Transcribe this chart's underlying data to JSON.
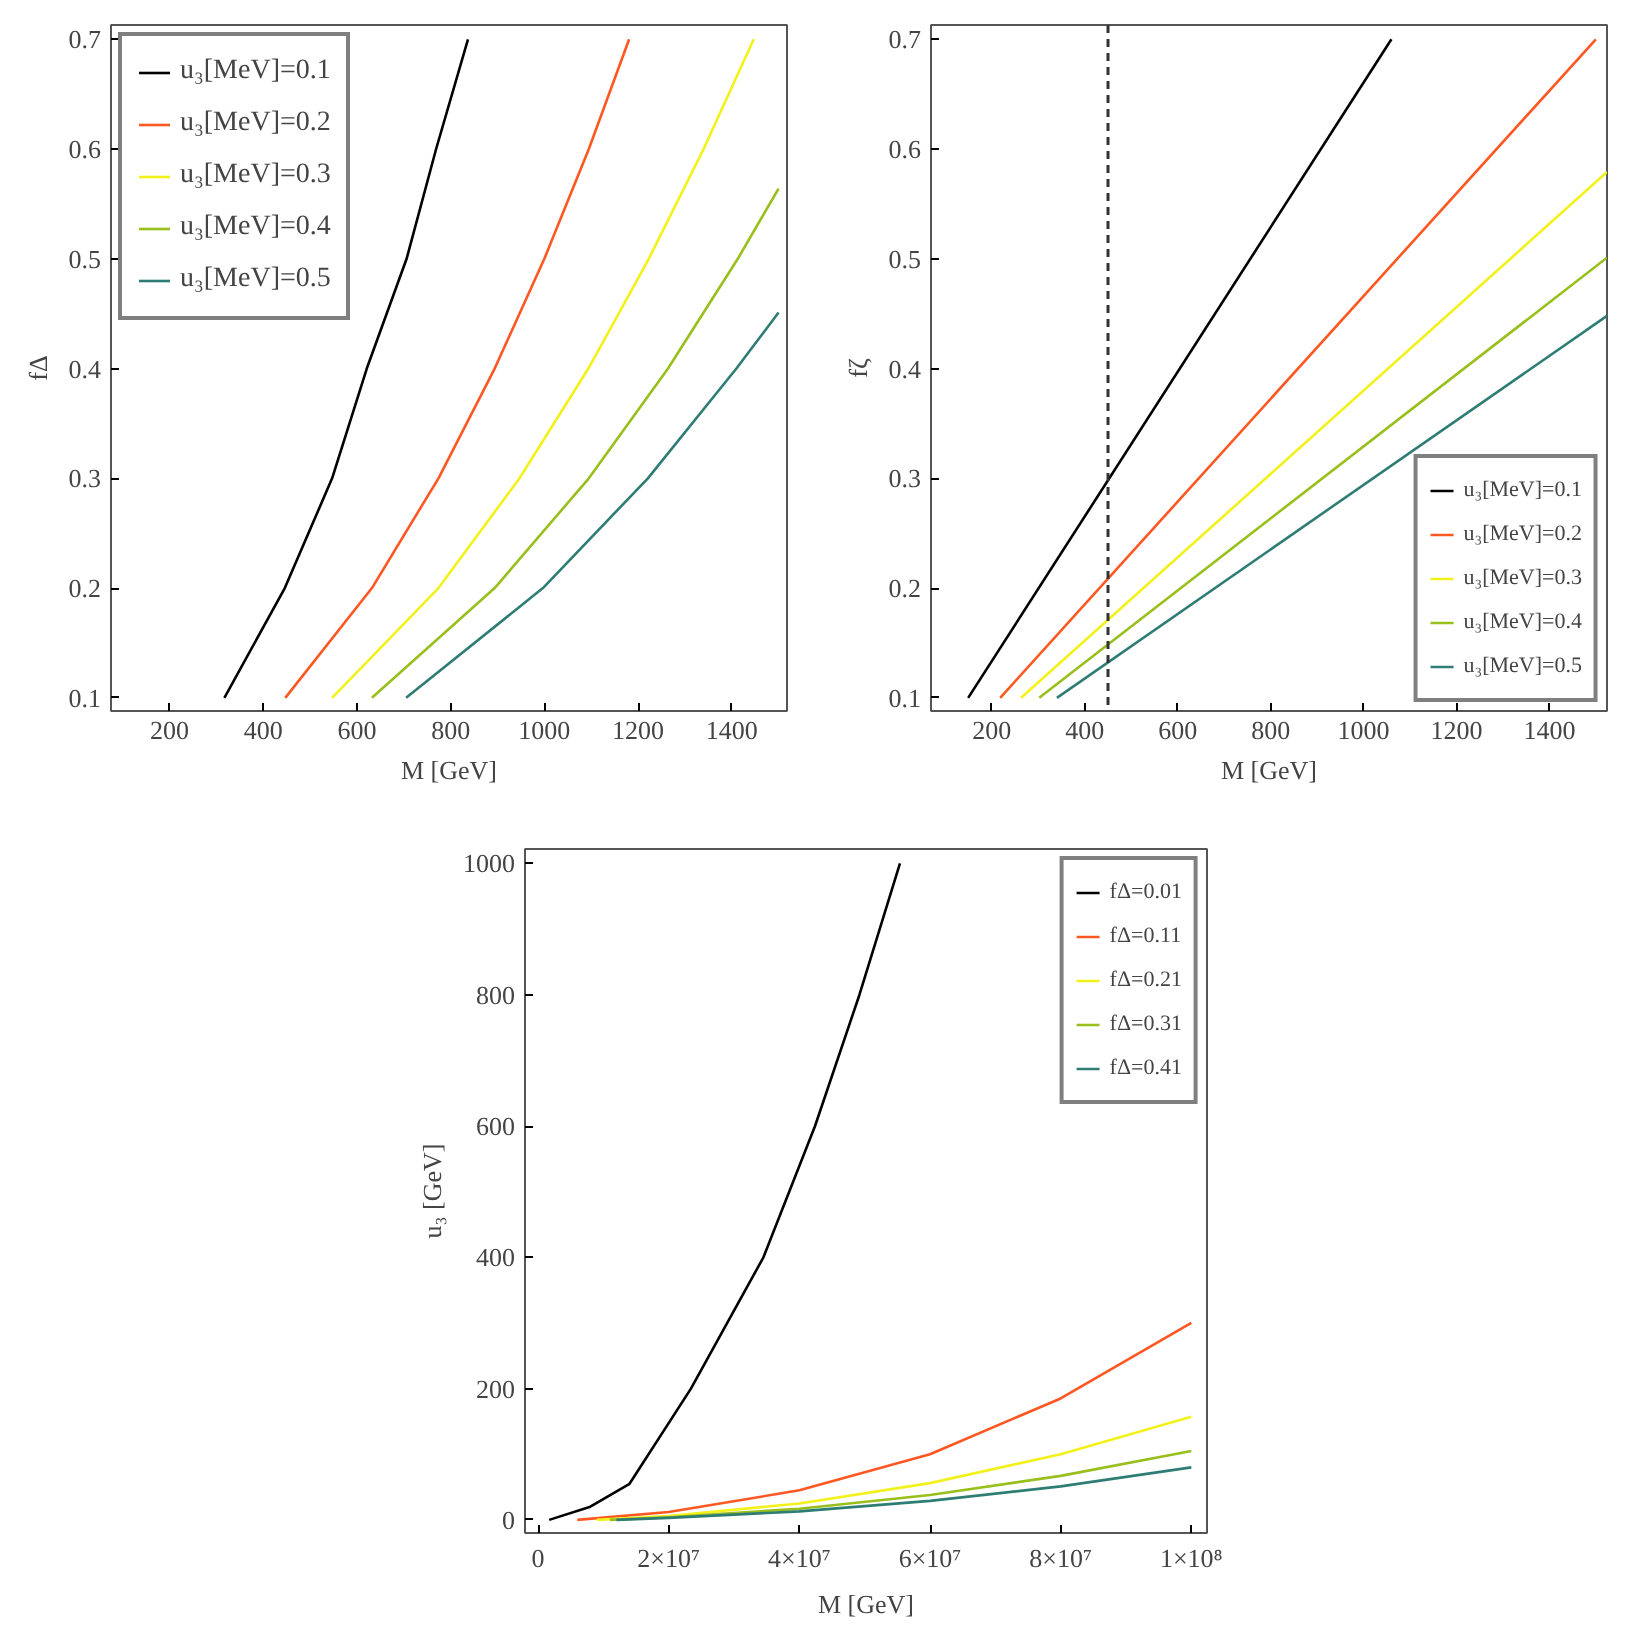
{
  "chart_data": [
    {
      "type": "line",
      "xlabel": "M [GeV]",
      "ylabel": "fΔ",
      "xlim": [
        75,
        1518
      ],
      "ylim": [
        0.088,
        0.713
      ],
      "xticks": [
        200,
        400,
        600,
        800,
        1000,
        1200,
        1400
      ],
      "yticks": [
        0.1,
        0.2,
        0.3,
        0.4,
        0.5,
        0.6,
        0.7
      ],
      "grid": false,
      "legend": "top left",
      "line_style": "solid",
      "marker": "none",
      "series": [
        {
          "name": "u₃[MeV]=0.1",
          "color": "#000000",
          "x": [
            317,
            446,
            547,
            621,
            706,
            769,
            837
          ],
          "values": [
            0.1,
            0.2,
            0.3,
            0.4,
            0.5,
            0.6,
            0.7
          ]
        },
        {
          "name": "u₃[MeV]=0.2",
          "color": "#ff5722",
          "x": [
            447,
            632,
            774,
            894,
            1000,
            1095,
            1181
          ],
          "values": [
            0.1,
            0.2,
            0.3,
            0.4,
            0.5,
            0.6,
            0.7
          ]
        },
        {
          "name": "u₃[MeV]=0.3",
          "color": "#f2f21a",
          "x": [
            547,
            774,
            947,
            1094,
            1223,
            1340,
            1447
          ],
          "values": [
            0.1,
            0.2,
            0.3,
            0.4,
            0.5,
            0.6,
            0.7
          ]
        },
        {
          "name": "u₃[MeV]=0.4",
          "color": "#99bf1c",
          "x": [
            632,
            894,
            1095,
            1264,
            1413,
            1500
          ],
          "values": [
            0.1,
            0.2,
            0.3,
            0.4,
            0.5,
            0.564
          ]
        },
        {
          "name": "u₃[MeV]=0.5",
          "color": "#2e7d74",
          "x": [
            705,
            997,
            1221,
            1410,
            1500
          ],
          "values": [
            0.1,
            0.2,
            0.3,
            0.4,
            0.451
          ]
        }
      ]
    },
    {
      "type": "line",
      "xlabel": "M [GeV]",
      "ylabel": "fζ",
      "xlim": [
        69,
        1524
      ],
      "ylim": [
        0.088,
        0.713
      ],
      "xticks": [
        200,
        400,
        600,
        800,
        1000,
        1200,
        1400
      ],
      "yticks": [
        0.1,
        0.2,
        0.3,
        0.4,
        0.5,
        0.6,
        0.7
      ],
      "grid": false,
      "legend": "bottom right",
      "line_style": "solid",
      "marker": "none",
      "ref_lines": [
        {
          "axis": "x",
          "value": 450,
          "label": null,
          "color": "#333333",
          "line_style": "dashed"
        }
      ],
      "series": [
        {
          "name": "u₃[MeV]=0.1",
          "color": "#000000",
          "x": [
            149,
            1060
          ],
          "values": [
            0.1,
            0.7
          ]
        },
        {
          "name": "u₃[MeV]=0.2",
          "color": "#ff5722",
          "x": [
            218,
            1500
          ],
          "values": [
            0.1,
            0.7
          ]
        },
        {
          "name": "u₃[MeV]=0.3",
          "color": "#f2f21a",
          "x": [
            263,
            1524
          ],
          "values": [
            0.1,
            0.579
          ]
        },
        {
          "name": "u₃[MeV]=0.4",
          "color": "#99bf1c",
          "x": [
            302,
            1524
          ],
          "values": [
            0.1,
            0.501
          ]
        },
        {
          "name": "u₃[MeV]=0.5",
          "color": "#2e7d74",
          "x": [
            340,
            1524
          ],
          "values": [
            0.1,
            0.448
          ]
        }
      ]
    },
    {
      "type": "line",
      "xlabel": "M [GeV]",
      "ylabel": "u₃ [GeV]",
      "xlim": [
        -2000000,
        102400000
      ],
      "ylim": [
        -20,
        1022
      ],
      "xticks": [
        0,
        {
          "value": 20000000,
          "label": "2×10⁷"
        },
        {
          "value": 40000000,
          "label": "4×10⁷"
        },
        {
          "value": 60000000,
          "label": "6×10⁷"
        },
        {
          "value": 80000000,
          "label": "8×10⁷"
        },
        {
          "value": 100000000,
          "label": "1×10⁸"
        }
      ],
      "yticks": [
        0,
        200,
        400,
        600,
        800,
        1000
      ],
      "grid": false,
      "legend": "top right",
      "line_style": "solid",
      "marker": "none",
      "series": [
        {
          "name": "fΔ=0.01",
          "color": "#000000",
          "x": [
            1700000,
            8000000,
            14000000,
            23400000,
            34500000,
            42400000,
            49200000,
            55400000
          ],
          "values": [
            0,
            20,
            55,
            200,
            400,
            600,
            800,
            1000
          ]
        },
        {
          "name": "fΔ=0.11",
          "color": "#ff5722",
          "x": [
            6000000,
            20000000,
            40000000,
            60000000,
            80000000,
            100000000
          ],
          "values": [
            0,
            12,
            45,
            100,
            185,
            300
          ]
        },
        {
          "name": "fΔ=0.21",
          "color": "#f2f21a",
          "x": [
            9000000,
            20000000,
            40000000,
            60000000,
            80000000,
            100000000
          ],
          "values": [
            0,
            6,
            25,
            56,
            100,
            157
          ]
        },
        {
          "name": "fΔ=0.31",
          "color": "#99bf1c",
          "x": [
            11000000,
            20000000,
            40000000,
            60000000,
            80000000,
            100000000
          ],
          "values": [
            0,
            4,
            17,
            38,
            67,
            105
          ]
        },
        {
          "name": "fΔ=0.41",
          "color": "#2e7d74",
          "x": [
            12000000,
            20000000,
            40000000,
            60000000,
            80000000,
            100000000
          ],
          "values": [
            0,
            3,
            13,
            29,
            51,
            80
          ]
        }
      ]
    }
  ]
}
